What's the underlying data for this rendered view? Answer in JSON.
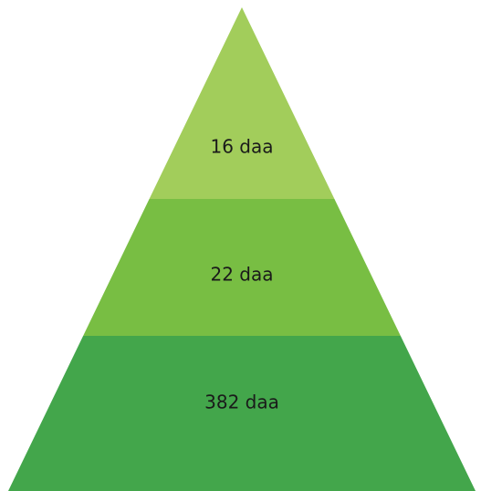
{
  "tiers": [
    {
      "label": "16 daa",
      "color": "#a2cd5b"
    },
    {
      "label": "22 daa",
      "color": "#78be43"
    },
    {
      "label": "382 daa",
      "color": "#43a64b"
    }
  ]
}
